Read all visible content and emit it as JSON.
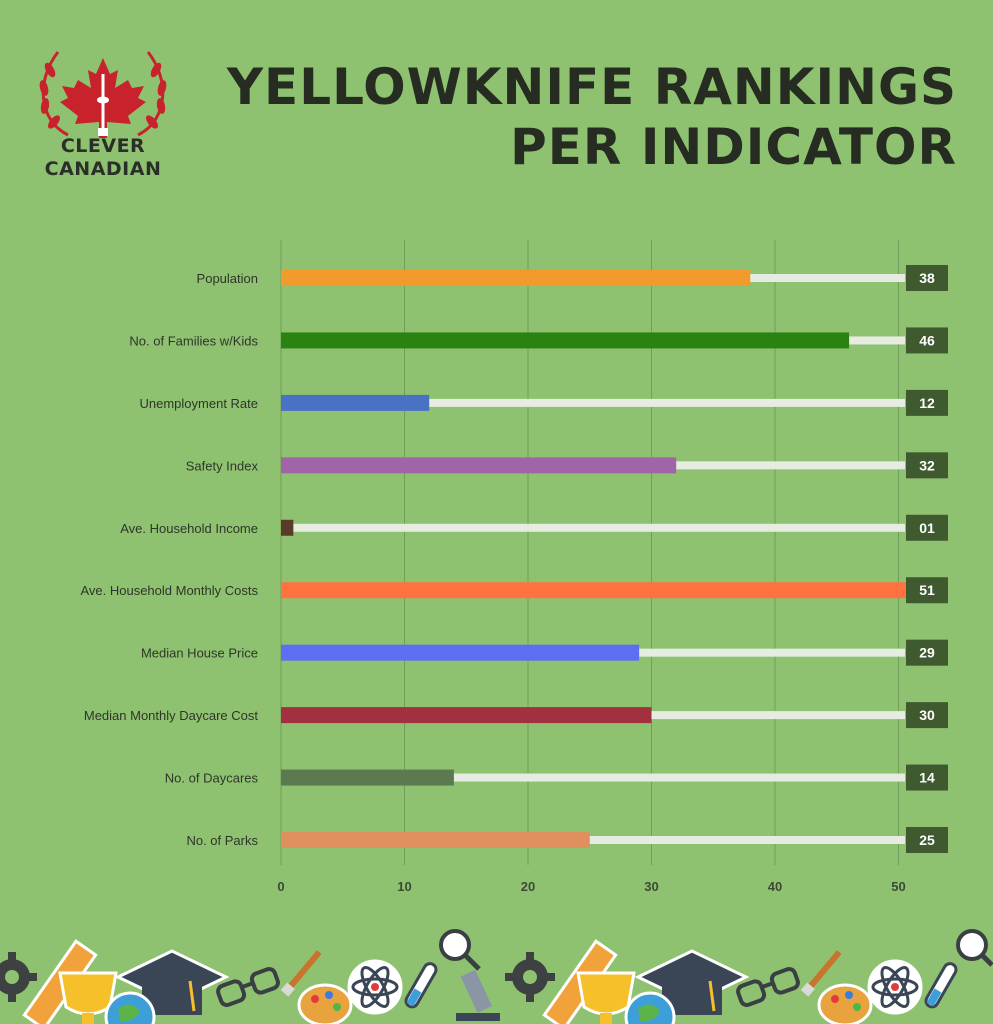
{
  "brand": {
    "line1": "CLEVER",
    "line2": "CANADIAN"
  },
  "title": {
    "line1": "YELLOWKNIFE RANKINGS",
    "line2": "PER INDICATOR"
  },
  "colors": {
    "background": "#8fc270",
    "track": "#e6ece2",
    "value_box": "#3f5a2f",
    "grid": "#6f9f58",
    "logo_red": "#c8232c"
  },
  "chart_data": {
    "type": "bar",
    "orientation": "horizontal",
    "title": "YELLOWKNIFE RANKINGS PER INDICATOR",
    "xlabel": "",
    "ylabel": "",
    "xlim": [
      0,
      51
    ],
    "xticks": [
      0,
      10,
      20,
      30,
      40,
      50
    ],
    "categories": [
      "Population",
      "No. of Families w/Kids",
      "Unemployment Rate",
      "Safety Index",
      "Ave. Household Income",
      "Ave. Household Monthly Costs",
      "Median House Price",
      "Median Monthly Daycare Cost",
      "No. of Daycares",
      "No. of Parks"
    ],
    "values": [
      38,
      46,
      12,
      32,
      1,
      51,
      29,
      30,
      14,
      25
    ],
    "value_labels": [
      "38",
      "46",
      "12",
      "32",
      "01",
      "51",
      "29",
      "30",
      "14",
      "25"
    ],
    "bar_colors": [
      "#f29a2e",
      "#2b8212",
      "#4a72c4",
      "#a264a8",
      "#5a3b2a",
      "#ff7240",
      "#5c6ff2",
      "#a3303f",
      "#5b7a4f",
      "#e0905e"
    ]
  },
  "decor_icons": [
    "gear-icon",
    "ruler-icon",
    "trophy-icon",
    "graduation-cap-icon",
    "glasses-icon",
    "paintbrush-icon",
    "palette-icon",
    "atom-icon",
    "test-tube-icon",
    "magnifier-icon",
    "microscope-icon",
    "globe-icon"
  ]
}
